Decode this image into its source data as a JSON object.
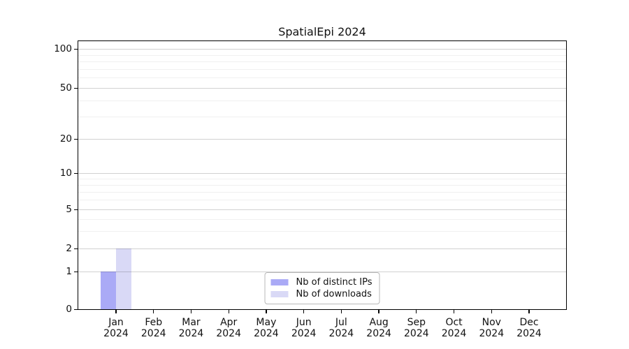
{
  "chart_data": {
    "type": "bar",
    "title": "SpatialEpi 2024",
    "categories": [
      "Jan",
      "Feb",
      "Mar",
      "Apr",
      "May",
      "Jun",
      "Jul",
      "Aug",
      "Sep",
      "Oct",
      "Nov",
      "Dec"
    ],
    "category_year": "2024",
    "series": [
      {
        "name": "Nb of distinct IPs",
        "color": "#aaaaf6",
        "values": [
          1,
          0,
          0,
          0,
          0,
          0,
          0,
          0,
          0,
          0,
          0,
          0
        ]
      },
      {
        "name": "Nb of downloads",
        "color": "#d9d9f6",
        "values": [
          2,
          0,
          0,
          0,
          0,
          0,
          0,
          0,
          0,
          0,
          0,
          0
        ]
      }
    ],
    "yaxis": {
      "scale": "symlog (linear 0-1, logarithmic above 1)",
      "major_ticks": [
        0,
        1,
        2,
        5,
        10,
        20,
        50,
        100
      ],
      "minor_ticks": [
        3,
        4,
        6,
        7,
        8,
        9,
        30,
        40,
        60,
        70,
        80,
        90
      ],
      "ylim": [
        0,
        115
      ]
    },
    "xlabel": "",
    "ylabel": "",
    "grid": "horizontal major and minor, light gray",
    "legend_position": "lower center",
    "colors": {
      "background": "#ffffff",
      "axis": "#000000",
      "major_grid": "#d1d1d1",
      "minor_grid": "#f0f0f0"
    }
  }
}
